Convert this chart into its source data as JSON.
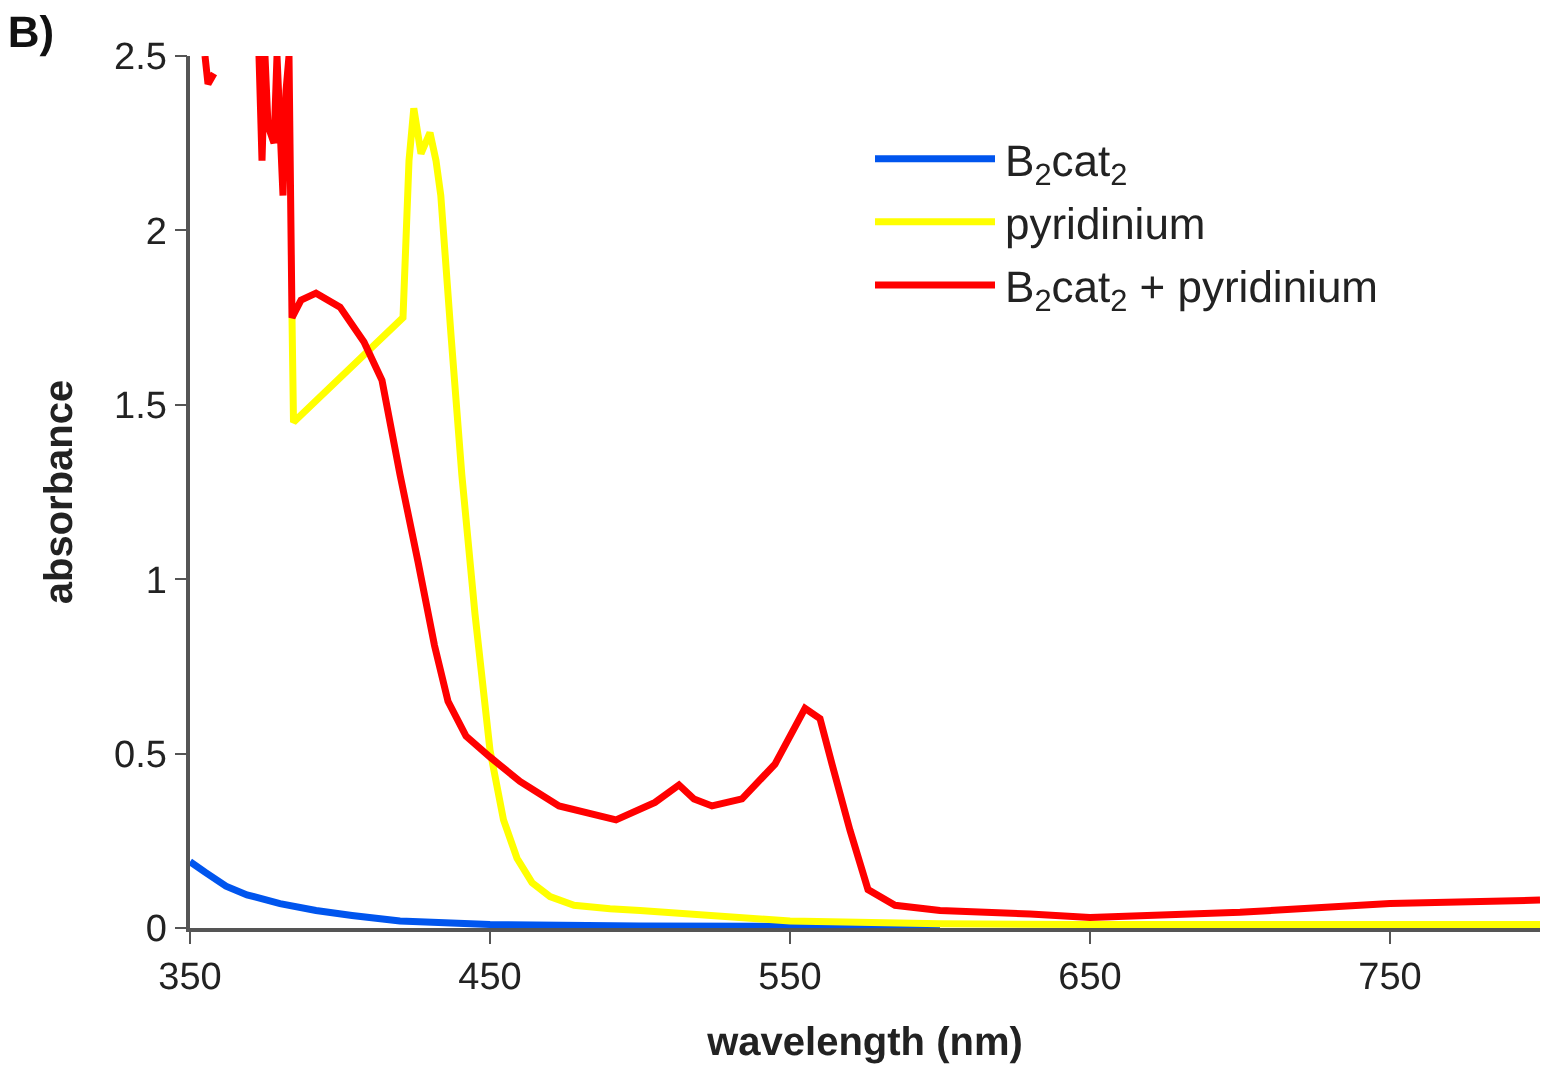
{
  "chart_data": {
    "type": "line",
    "title": "B)",
    "xlabel": "wavelength (nm)",
    "ylabel": "absorbance",
    "xlim": [
      350,
      800
    ],
    "ylim": [
      0,
      2.5
    ],
    "xticks": [
      350,
      450,
      550,
      650,
      750
    ],
    "yticks": [
      0,
      0.5,
      1,
      1.5,
      2,
      2.5
    ],
    "legend": "top right",
    "marker": "none",
    "line_style": "solid",
    "series": [
      {
        "name": "B$_{2}$cat$_{2}$",
        "color": "#0055ee",
        "x": [
          350,
          355,
          362,
          369,
          380,
          392,
          404,
          420,
          450,
          500,
          550,
          600
        ],
        "values": [
          0.19,
          0.16,
          0.12,
          0.095,
          0.07,
          0.05,
          0.036,
          0.02,
          0.01,
          0.006,
          0.005,
          0.005
        ]
      },
      {
        "name": "pyridinium",
        "color": "#ffff00",
        "x": [
          384,
          384.5,
          421,
          423,
          424.6,
          427,
          430,
          432,
          433.6,
          437,
          440.6,
          445,
          450,
          454.5,
          459,
          464,
          470,
          478,
          490,
          500,
          550,
          600,
          650,
          700,
          750,
          800
        ],
        "values": [
          1.75,
          1.45,
          1.75,
          2.2,
          2.35,
          2.22,
          2.28,
          2.2,
          2.1,
          1.7,
          1.3,
          0.9,
          0.51,
          0.31,
          0.2,
          0.13,
          0.09,
          0.065,
          0.055,
          0.05,
          0.02,
          0.012,
          0.01,
          0.01,
          0.01,
          0.01
        ]
      },
      {
        "name": "B$_{2}$cat$_{2}$ + pyridinium",
        "color": "#ff0000",
        "x": [
          355,
          356,
          358,
          360,
          373,
          374,
          375,
          376,
          378,
          379,
          381,
          382,
          383,
          384,
          387,
          392,
          400,
          408,
          414,
          420,
          426,
          431.5,
          436,
          442,
          450,
          460,
          473,
          492,
          505,
          513,
          518,
          524,
          534,
          545,
          555,
          560,
          564,
          570,
          576,
          585,
          600,
          630,
          650,
          700,
          750,
          800
        ],
        "values": [
          2.5,
          2.42,
          2.45,
          null,
          2.5,
          2.2,
          2.5,
          2.3,
          2.25,
          2.5,
          2.1,
          2.4,
          2.5,
          1.75,
          1.8,
          1.82,
          1.78,
          1.68,
          1.57,
          1.3,
          1.05,
          0.81,
          0.65,
          0.55,
          0.49,
          0.42,
          0.35,
          0.31,
          0.36,
          0.41,
          0.37,
          0.35,
          0.37,
          0.47,
          0.63,
          0.6,
          0.47,
          0.28,
          0.11,
          0.065,
          0.05,
          0.04,
          0.03,
          0.045,
          0.07,
          0.08
        ]
      }
    ]
  }
}
